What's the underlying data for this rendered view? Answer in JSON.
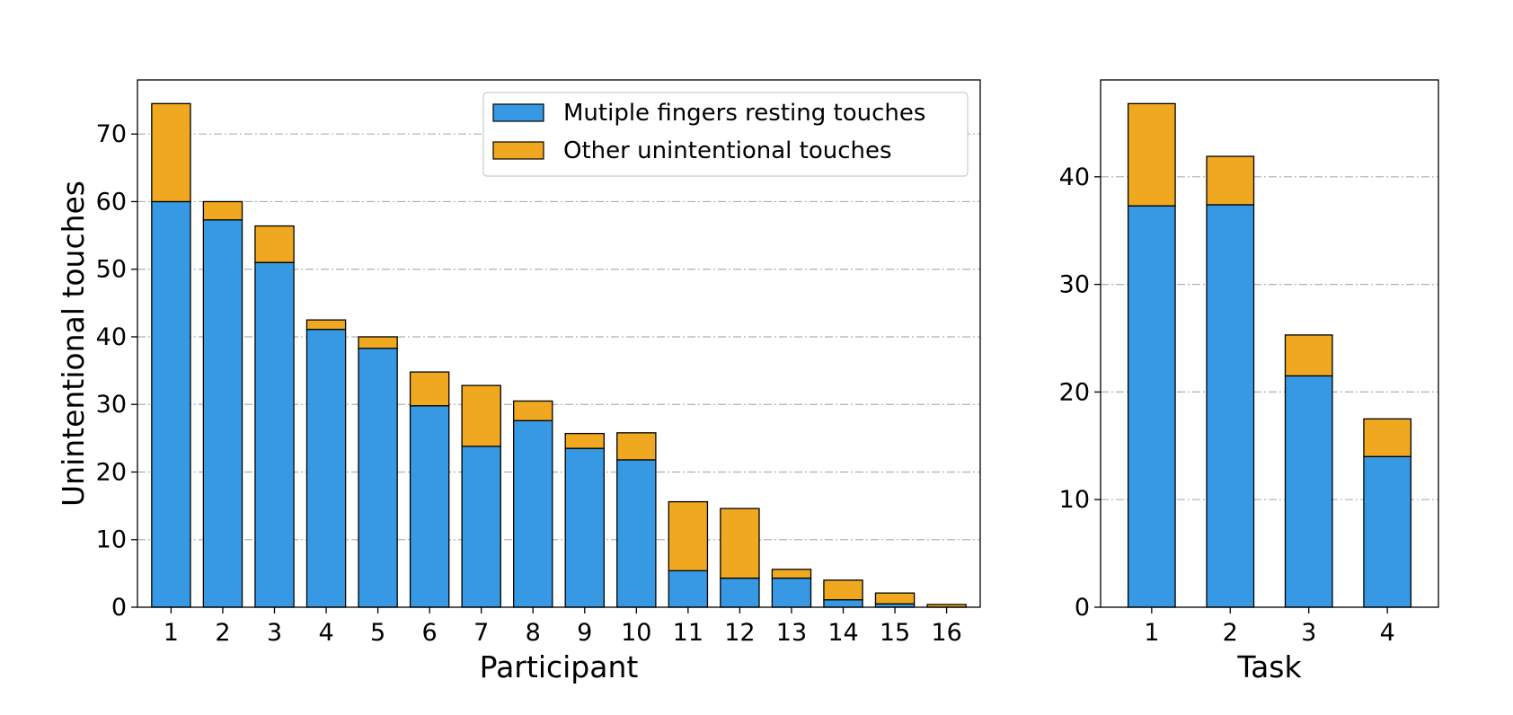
{
  "chart_data": [
    {
      "type": "bar",
      "stacked": true,
      "categories": [
        "1",
        "2",
        "3",
        "4",
        "5",
        "6",
        "7",
        "8",
        "9",
        "10",
        "11",
        "12",
        "13",
        "14",
        "15",
        "16"
      ],
      "series": [
        {
          "name": "Mutiple fingers resting touches",
          "color": "#3799e3",
          "values": [
            60,
            57.3,
            51,
            41.1,
            38.3,
            29.8,
            23.8,
            27.6,
            23.5,
            21.8,
            5.4,
            4.3,
            4.3,
            1.1,
            0.5,
            0
          ]
        },
        {
          "name": "Other unintentional touches",
          "color": "#f0a821",
          "values": [
            14.5,
            2.7,
            5.4,
            1.4,
            1.7,
            5.0,
            9.0,
            2.9,
            2.2,
            4.0,
            10.2,
            10.3,
            1.3,
            2.9,
            1.6,
            0.4
          ]
        }
      ],
      "xlabel": "Participant",
      "ylabel": "Unintentional touches",
      "ylim": [
        0,
        78
      ],
      "yticks": [
        0,
        10,
        20,
        30,
        40,
        50,
        60,
        70
      ],
      "grid": "y",
      "legend_position": "upper-right"
    },
    {
      "type": "bar",
      "stacked": true,
      "categories": [
        "1",
        "2",
        "3",
        "4"
      ],
      "series": [
        {
          "name": "Mutiple fingers resting touches",
          "color": "#3799e3",
          "values": [
            37.3,
            37.4,
            21.5,
            14.0
          ]
        },
        {
          "name": "Other unintentional touches",
          "color": "#f0a821",
          "values": [
            9.5,
            4.5,
            3.8,
            3.5
          ]
        }
      ],
      "xlabel": "Task",
      "ylabel": "",
      "ylim": [
        0,
        49
      ],
      "yticks": [
        0,
        10,
        20,
        30,
        40
      ],
      "grid": "y"
    }
  ]
}
